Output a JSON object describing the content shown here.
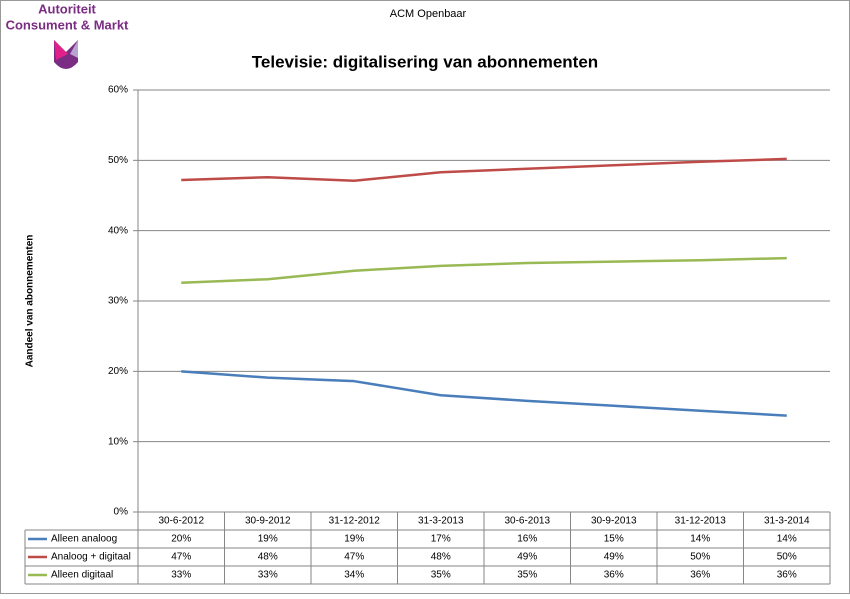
{
  "header": {
    "logo_line1": "Autoriteit",
    "logo_line2": "Consument & Markt",
    "classification": "ACM Openbaar"
  },
  "chart_data": {
    "type": "line",
    "title": "Televisie: digitalisering van abonnementen",
    "y_label": "Aandeel van abonnementen",
    "categories": [
      "30-6-2012",
      "30-9-2012",
      "31-12-2012",
      "31-3-2013",
      "30-6-2013",
      "30-9-2013",
      "31-12-2013",
      "31-3-2014"
    ],
    "series": [
      {
        "name": "Alleen analoog",
        "color": "#4a7ebb",
        "values": [
          20.0,
          19.1,
          18.6,
          16.6,
          15.8,
          15.1,
          14.4,
          13.7
        ],
        "value_labels": [
          "20%",
          "19%",
          "19%",
          "17%",
          "16%",
          "15%",
          "14%",
          "14%"
        ]
      },
      {
        "name": "Analoog + digitaal",
        "color": "#be4b48",
        "values": [
          47.2,
          47.6,
          47.1,
          48.3,
          48.8,
          49.3,
          49.8,
          50.2
        ],
        "value_labels": [
          "47%",
          "48%",
          "47%",
          "48%",
          "49%",
          "49%",
          "50%",
          "50%"
        ]
      },
      {
        "name": "Alleen digitaal",
        "color": "#98b954",
        "values": [
          32.6,
          33.1,
          34.3,
          35.0,
          35.4,
          35.6,
          35.8,
          36.1
        ],
        "value_labels": [
          "33%",
          "33%",
          "34%",
          "35%",
          "35%",
          "36%",
          "36%",
          "36%"
        ]
      }
    ],
    "ylim": [
      0,
      60
    ],
    "yticks": [
      {
        "value": 0,
        "label": "0%"
      },
      {
        "value": 10,
        "label": "10%"
      },
      {
        "value": 20,
        "label": "20%"
      },
      {
        "value": 30,
        "label": "30%"
      },
      {
        "value": 40,
        "label": "40%"
      },
      {
        "value": 50,
        "label": "50%"
      },
      {
        "value": 60,
        "label": "60%"
      }
    ],
    "grid": true
  }
}
